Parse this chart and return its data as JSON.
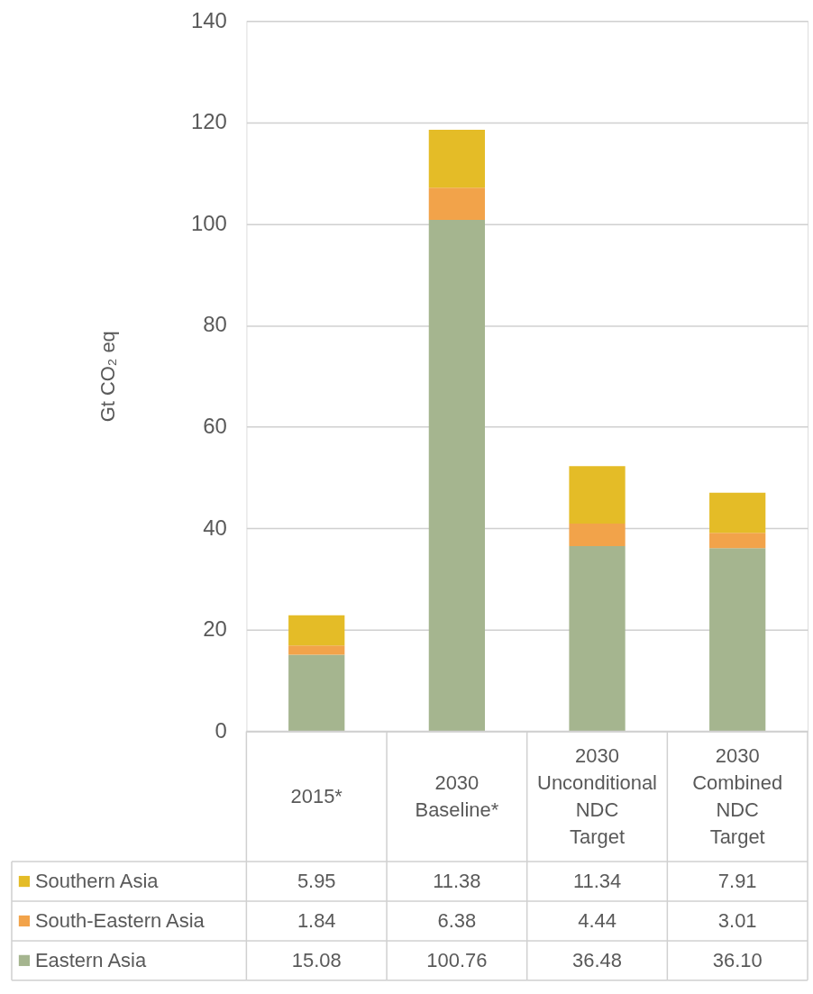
{
  "chart_data": {
    "type": "bar",
    "stacked": true,
    "ylabel": "Gt CO₂ eq",
    "categories": [
      "2015*",
      "2030 Baseline*",
      "2030 Unconditional NDC Target",
      "2030 Combined NDC Target"
    ],
    "series": [
      {
        "name": "Eastern Asia",
        "color": "#a5b58f",
        "values": [
          15.08,
          100.76,
          36.48,
          36.1
        ],
        "value_labels": [
          "15.08",
          "100.76",
          "36.48",
          "36.10"
        ]
      },
      {
        "name": "South-Eastern Asia",
        "color": "#f2a34a",
        "values": [
          1.84,
          6.38,
          4.44,
          3.01
        ],
        "value_labels": [
          "1.84",
          "6.38",
          "4.44",
          "3.01"
        ]
      },
      {
        "name": "Southern Asia",
        "color": "#e4bc27",
        "values": [
          5.95,
          11.38,
          11.34,
          7.91
        ],
        "value_labels": [
          "5.95",
          "11.38",
          "11.34",
          "7.91"
        ]
      }
    ],
    "ylim": [
      0,
      140
    ],
    "yticks": [
      0,
      20,
      40,
      60,
      80,
      100,
      120,
      140
    ],
    "grid": "y",
    "legend": "bottom"
  }
}
